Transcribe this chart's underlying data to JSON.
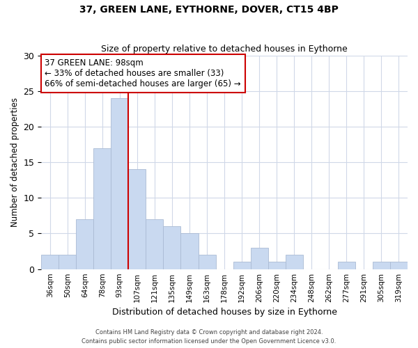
{
  "title1": "37, GREEN LANE, EYTHORNE, DOVER, CT15 4BP",
  "title2": "Size of property relative to detached houses in Eythorne",
  "xlabel": "Distribution of detached houses by size in Eythorne",
  "ylabel": "Number of detached properties",
  "bin_labels": [
    "36sqm",
    "50sqm",
    "64sqm",
    "78sqm",
    "93sqm",
    "107sqm",
    "121sqm",
    "135sqm",
    "149sqm",
    "163sqm",
    "178sqm",
    "192sqm",
    "206sqm",
    "220sqm",
    "234sqm",
    "248sqm",
    "262sqm",
    "277sqm",
    "291sqm",
    "305sqm",
    "319sqm"
  ],
  "bar_heights": [
    2,
    2,
    7,
    17,
    24,
    14,
    7,
    6,
    5,
    2,
    0,
    1,
    3,
    1,
    2,
    0,
    0,
    1,
    0,
    1,
    1
  ],
  "bar_color": "#c9d9f0",
  "bar_edge_color": "#aabbd4",
  "grid_color": "#d0d8e8",
  "vline_x_bar_index": 4,
  "vline_at_right_edge": true,
  "annotation_text_line1": "37 GREEN LANE: 98sqm",
  "annotation_text_line2": "← 33% of detached houses are smaller (33)",
  "annotation_text_line3": "66% of semi-detached houses are larger (65) →",
  "annotation_box_color": "#ffffff",
  "annotation_box_edge": "#cc0000",
  "vline_color": "#cc0000",
  "ylim": [
    0,
    30
  ],
  "yticks": [
    0,
    5,
    10,
    15,
    20,
    25,
    30
  ],
  "footnote1": "Contains HM Land Registry data © Crown copyright and database right 2024.",
  "footnote2": "Contains public sector information licensed under the Open Government Licence v3.0."
}
